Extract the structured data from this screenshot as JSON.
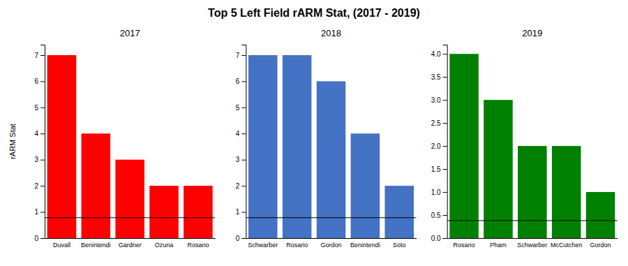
{
  "title": "Top 5 Left Field rARM Stat, (2017 - 2019)",
  "chart_data": [
    {
      "type": "bar",
      "title": "2017",
      "ylabel": "rARM Stat",
      "categories": [
        "Duvall",
        "Benintendi",
        "Gardner",
        "Ozuna",
        "Rosario"
      ],
      "values": [
        7,
        4,
        3,
        2,
        2
      ],
      "color": "#ff0000",
      "reference_line": 0.78,
      "ylim": [
        0,
        7.4
      ],
      "yticks": [
        0,
        1,
        2,
        3,
        4,
        5,
        6,
        7
      ],
      "grid": false
    },
    {
      "type": "bar",
      "title": "2018",
      "categories": [
        "Schwarber",
        "Rosario",
        "Gordon",
        "Benintendi",
        "Soto"
      ],
      "values": [
        7,
        7,
        6,
        4,
        2
      ],
      "color": "#4472c4",
      "reference_line": 0.78,
      "ylim": [
        0,
        7.4
      ],
      "yticks": [
        0,
        1,
        2,
        3,
        4,
        5,
        6,
        7
      ],
      "grid": false
    },
    {
      "type": "bar",
      "title": "2019",
      "categories": [
        "Rosario",
        "Pham",
        "Schwarber",
        "McCutchen",
        "Gordon"
      ],
      "values": [
        4,
        3,
        2,
        2,
        1
      ],
      "color": "#008000",
      "reference_line": 0.38,
      "ylim": [
        0,
        4.2
      ],
      "yticks": [
        {
          "value": 0,
          "label": "0.0"
        },
        0.5,
        {
          "value": 1,
          "label": "1.0"
        },
        1.5,
        {
          "value": 2,
          "label": "2.0"
        },
        2.5,
        {
          "value": 3,
          "label": "3.0"
        },
        3.5,
        {
          "value": 4,
          "label": "4.0"
        }
      ],
      "grid": false
    }
  ]
}
